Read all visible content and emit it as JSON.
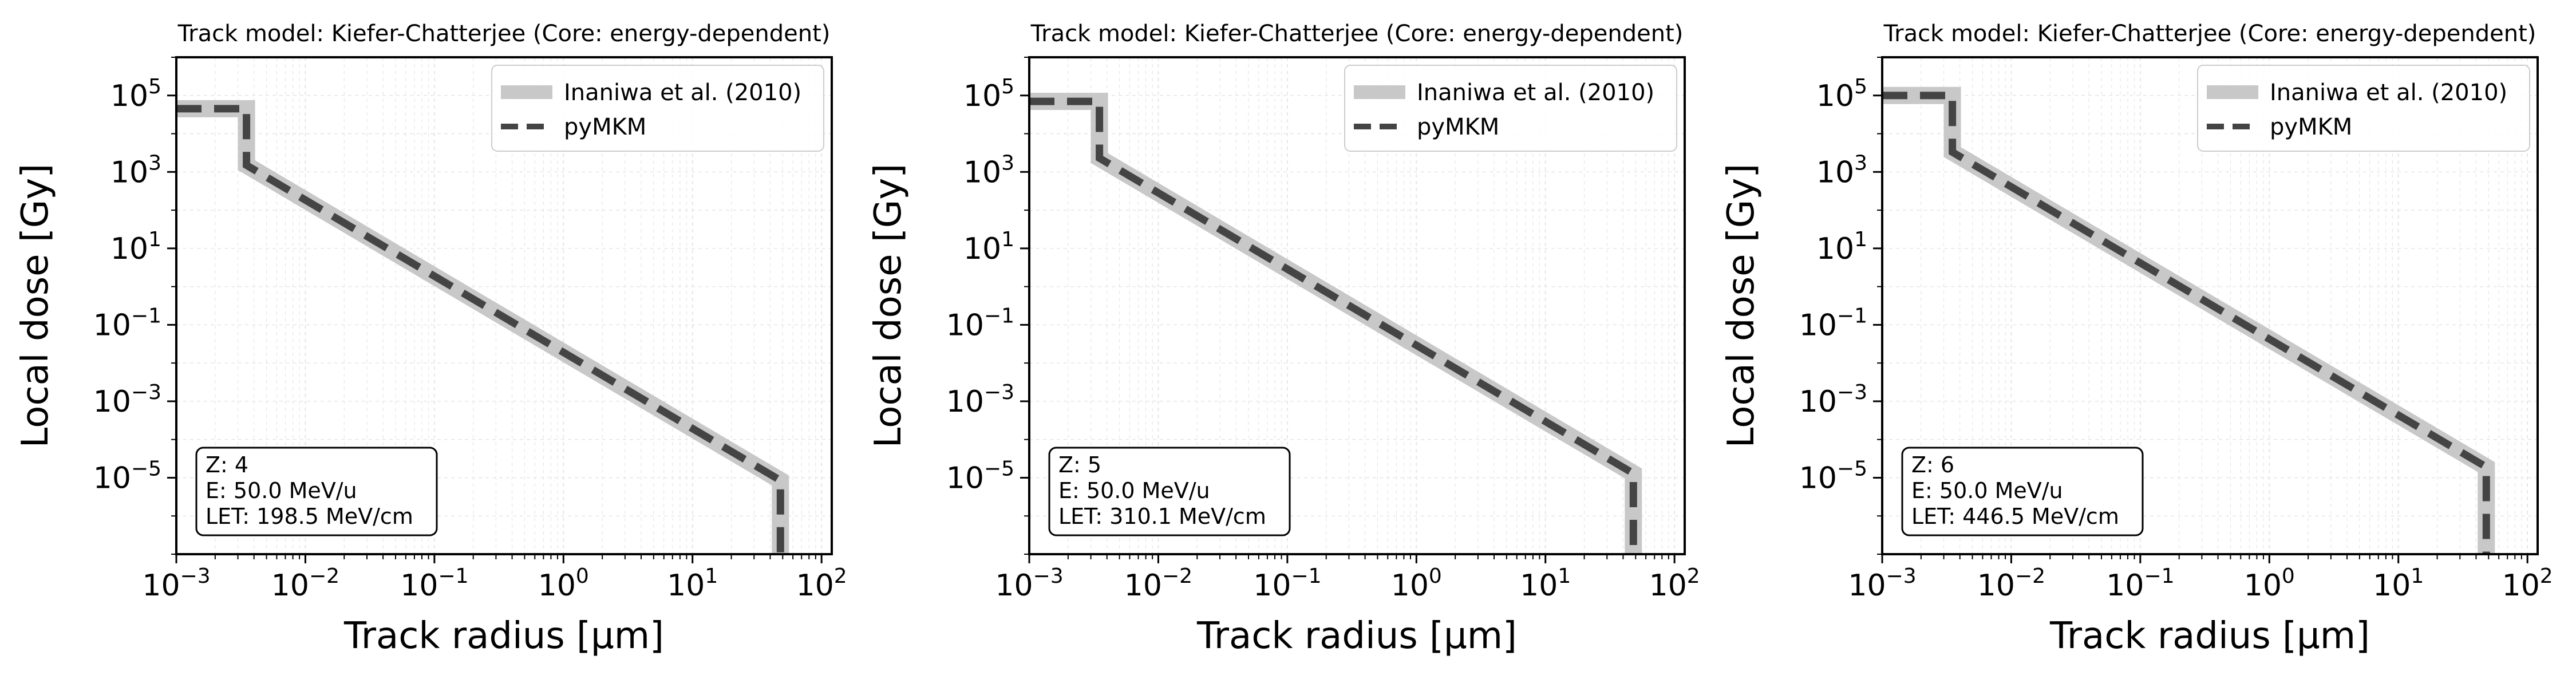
{
  "chart_data": [
    {
      "type": "line",
      "title": "Track model: Kiefer-Chatterjee (Core: energy-dependent)",
      "xlabel": "Track radius [μm]",
      "ylabel": "Local dose [Gy]",
      "xscale": "log",
      "yscale": "log",
      "xlim": [
        0.001,
        120
      ],
      "ylim": [
        1e-07,
        1000000.0
      ],
      "grid": true,
      "legend_position": "top-right",
      "x_ticks": [
        {
          "base": "10",
          "exp": "−3",
          "value": 0.001
        },
        {
          "base": "10",
          "exp": "−2",
          "value": 0.01
        },
        {
          "base": "10",
          "exp": "−1",
          "value": 0.1
        },
        {
          "base": "10",
          "exp": "0",
          "value": 1
        },
        {
          "base": "10",
          "exp": "1",
          "value": 10
        },
        {
          "base": "10",
          "exp": "2",
          "value": 100
        }
      ],
      "y_ticks": [
        {
          "base": "10",
          "exp": "−5",
          "value": 1e-05
        },
        {
          "base": "10",
          "exp": "−3",
          "value": 0.001
        },
        {
          "base": "10",
          "exp": "−1",
          "value": 0.1
        },
        {
          "base": "10",
          "exp": "1",
          "value": 10
        },
        {
          "base": "10",
          "exp": "3",
          "value": 1000
        },
        {
          "base": "10",
          "exp": "5",
          "value": 100000
        }
      ],
      "info": [
        "Z: 4",
        "E: 50.0 MeV/u",
        "LET: 198.5 MeV/cm"
      ],
      "series": [
        {
          "name": "Inaniwa et al. (2010)",
          "color": "#c8c8c8",
          "style": "solid",
          "x": [
            0.001,
            0.0035,
            0.0035,
            48,
            48
          ],
          "y": [
            45000,
            45000,
            1500,
            8.5e-06,
            1e-07
          ]
        },
        {
          "name": "pyMKM",
          "color": "#444444",
          "style": "dashed",
          "x": [
            0.001,
            0.0035,
            0.0035,
            48,
            48
          ],
          "y": [
            45000,
            45000,
            1500,
            8.5e-06,
            1e-07
          ]
        }
      ]
    },
    {
      "type": "line",
      "title": "Track model: Kiefer-Chatterjee (Core: energy-dependent)",
      "xlabel": "Track radius [μm]",
      "ylabel": "Local dose [Gy]",
      "xscale": "log",
      "yscale": "log",
      "xlim": [
        0.001,
        120
      ],
      "ylim": [
        1e-07,
        1000000.0
      ],
      "grid": true,
      "legend_position": "top-right",
      "x_ticks": [
        {
          "base": "10",
          "exp": "−3",
          "value": 0.001
        },
        {
          "base": "10",
          "exp": "−2",
          "value": 0.01
        },
        {
          "base": "10",
          "exp": "−1",
          "value": 0.1
        },
        {
          "base": "10",
          "exp": "0",
          "value": 1
        },
        {
          "base": "10",
          "exp": "1",
          "value": 10
        },
        {
          "base": "10",
          "exp": "2",
          "value": 100
        }
      ],
      "y_ticks": [
        {
          "base": "10",
          "exp": "−5",
          "value": 1e-05
        },
        {
          "base": "10",
          "exp": "−3",
          "value": 0.001
        },
        {
          "base": "10",
          "exp": "−1",
          "value": 0.1
        },
        {
          "base": "10",
          "exp": "1",
          "value": 10
        },
        {
          "base": "10",
          "exp": "3",
          "value": 1000
        },
        {
          "base": "10",
          "exp": "5",
          "value": 100000
        }
      ],
      "info": [
        "Z: 5",
        "E: 50.0 MeV/u",
        "LET: 310.1 MeV/cm"
      ],
      "series": [
        {
          "name": "Inaniwa et al. (2010)",
          "color": "#c8c8c8",
          "style": "solid",
          "x": [
            0.001,
            0.0035,
            0.0035,
            48,
            48
          ],
          "y": [
            70000,
            70000,
            2300,
            1.3e-05,
            1e-07
          ]
        },
        {
          "name": "pyMKM",
          "color": "#444444",
          "style": "dashed",
          "x": [
            0.001,
            0.0035,
            0.0035,
            48,
            48
          ],
          "y": [
            70000,
            70000,
            2300,
            1.3e-05,
            1e-07
          ]
        }
      ]
    },
    {
      "type": "line",
      "title": "Track model: Kiefer-Chatterjee (Core: energy-dependent)",
      "xlabel": "Track radius [μm]",
      "ylabel": "Local dose [Gy]",
      "xscale": "log",
      "yscale": "log",
      "xlim": [
        0.001,
        120
      ],
      "ylim": [
        1e-07,
        1000000.0
      ],
      "grid": true,
      "legend_position": "top-right",
      "x_ticks": [
        {
          "base": "10",
          "exp": "−3",
          "value": 0.001
        },
        {
          "base": "10",
          "exp": "−2",
          "value": 0.01
        },
        {
          "base": "10",
          "exp": "−1",
          "value": 0.1
        },
        {
          "base": "10",
          "exp": "0",
          "value": 1
        },
        {
          "base": "10",
          "exp": "1",
          "value": 10
        },
        {
          "base": "10",
          "exp": "2",
          "value": 100
        }
      ],
      "y_ticks": [
        {
          "base": "10",
          "exp": "−5",
          "value": 1e-05
        },
        {
          "base": "10",
          "exp": "−3",
          "value": 0.001
        },
        {
          "base": "10",
          "exp": "−1",
          "value": 0.1
        },
        {
          "base": "10",
          "exp": "1",
          "value": 10
        },
        {
          "base": "10",
          "exp": "3",
          "value": 1000
        },
        {
          "base": "10",
          "exp": "5",
          "value": 100000
        }
      ],
      "info": [
        "Z: 6",
        "E: 50.0 MeV/u",
        "LET: 446.5 MeV/cm"
      ],
      "series": [
        {
          "name": "Inaniwa et al. (2010)",
          "color": "#c8c8c8",
          "style": "solid",
          "x": [
            0.001,
            0.0035,
            0.0035,
            48,
            48
          ],
          "y": [
            100000,
            100000,
            3300,
            1.9e-05,
            1e-07
          ]
        },
        {
          "name": "pyMKM",
          "color": "#444444",
          "style": "dashed",
          "x": [
            0.001,
            0.0035,
            0.0035,
            48,
            48
          ],
          "y": [
            100000,
            100000,
            3300,
            1.9e-05,
            1e-07
          ]
        }
      ]
    }
  ]
}
